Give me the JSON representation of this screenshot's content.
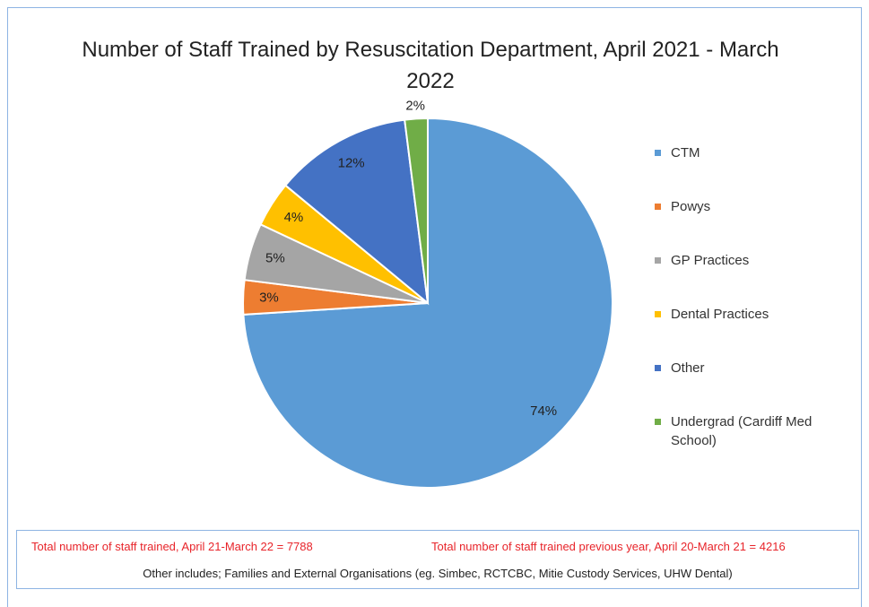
{
  "chart_data": {
    "type": "pie",
    "title": "Number of Staff Trained by Resuscitation Department, April 2021 - March 2022",
    "categories": [
      "CTM",
      "Powys",
      "GP Practices",
      "Dental Practices",
      "Other",
      "Undergrad (Cardiff Med School)"
    ],
    "values": [
      74,
      3,
      5,
      4,
      12,
      2
    ],
    "value_labels": [
      "74%",
      "3%",
      "5%",
      "4%",
      "12%",
      "2%"
    ],
    "colors": [
      "#5b9bd5",
      "#ed7d31",
      "#a5a5a5",
      "#ffc000",
      "#4472c4",
      "#70ad47"
    ],
    "legend": "right"
  },
  "notes": {
    "total_current": "Total number of staff trained, April 21-March 22 = 7788",
    "total_previous": "Total number of staff trained previous year, April 20-March 21 = 4216",
    "other_includes": "Other includes; Families and External Organisations (eg. Simbec, RCTCBC, Mitie Custody Services, UHW Dental)"
  }
}
